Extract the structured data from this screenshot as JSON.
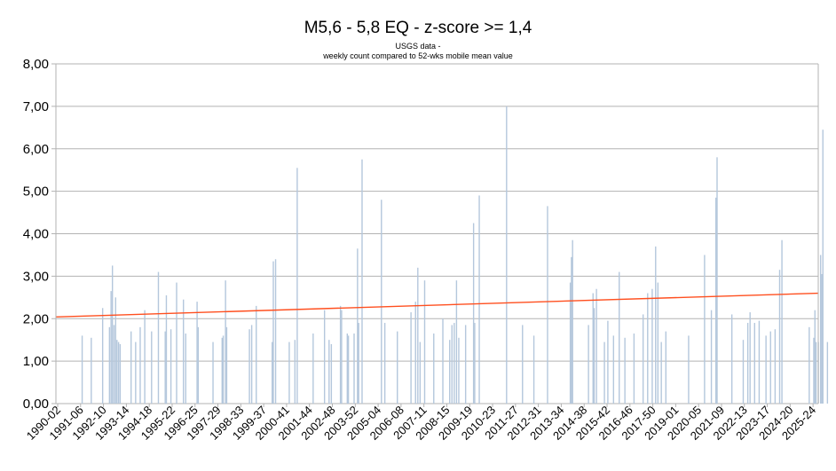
{
  "chart_data": {
    "type": "bar",
    "title": "M5,6 - 5,8 EQ - z-score >= 1,4",
    "subtitle_lines": [
      "USGS data -",
      "weekly count compared to 52-wks mobile mean value"
    ],
    "xlabel": "",
    "ylabel": "",
    "ylim": [
      0,
      8
    ],
    "yticks": [
      "0,00",
      "1,00",
      "2,00",
      "3,00",
      "4,00",
      "5,00",
      "6,00",
      "7,00",
      "8,00"
    ],
    "grid": true,
    "legend": "none",
    "colors": {
      "bars": "#b4c7dc",
      "trend": "#ff4f1f",
      "grid": "#b3b3b3"
    },
    "xticks": [
      "1990-02",
      "1991-06",
      "1992-10",
      "1993-14",
      "1994-18",
      "1995-22",
      "1996-25",
      "1997-29",
      "1998-33",
      "1999-37",
      "2000-41",
      "2001-44",
      "2002-48",
      "2003-52",
      "2005-04",
      "2006-08",
      "2007-11",
      "2008-15",
      "2009-19",
      "2010-23",
      "2011-27",
      "2012-31",
      "2013-34",
      "2014-38",
      "2015-42",
      "2016-46",
      "2017-50",
      "2019-01",
      "2020-05",
      "2021-09",
      "2022-13",
      "2023-17",
      "2024-20",
      "2025-24"
    ],
    "x_range": [
      0,
      33.5
    ],
    "series": [
      {
        "type": "bar",
        "points": [
          [
            1.15,
            1.6
          ],
          [
            1.55,
            1.55
          ],
          [
            2.05,
            2.25
          ],
          [
            2.35,
            1.8
          ],
          [
            2.42,
            2.65
          ],
          [
            2.48,
            3.25
          ],
          [
            2.55,
            1.85
          ],
          [
            2.62,
            2.5
          ],
          [
            2.68,
            1.5
          ],
          [
            2.75,
            1.45
          ],
          [
            2.82,
            1.4
          ],
          [
            3.3,
            1.7
          ],
          [
            3.5,
            1.45
          ],
          [
            3.7,
            1.8
          ],
          [
            3.9,
            2.2
          ],
          [
            4.2,
            1.7
          ],
          [
            4.5,
            3.1
          ],
          [
            4.8,
            1.7
          ],
          [
            4.85,
            2.55
          ],
          [
            5.05,
            1.75
          ],
          [
            5.3,
            2.85
          ],
          [
            5.6,
            2.45
          ],
          [
            5.7,
            1.65
          ],
          [
            6.2,
            2.4
          ],
          [
            6.25,
            1.8
          ],
          [
            6.9,
            1.45
          ],
          [
            7.3,
            1.55
          ],
          [
            7.35,
            1.6
          ],
          [
            7.45,
            2.9
          ],
          [
            7.5,
            1.8
          ],
          [
            8.5,
            1.75
          ],
          [
            8.6,
            1.85
          ],
          [
            8.8,
            2.3
          ],
          [
            9.5,
            1.45
          ],
          [
            9.55,
            3.35
          ],
          [
            9.65,
            3.4
          ],
          [
            10.25,
            1.45
          ],
          [
            10.5,
            1.5
          ],
          [
            10.6,
            5.55
          ],
          [
            11.3,
            1.65
          ],
          [
            11.8,
            2.2
          ],
          [
            12.0,
            1.5
          ],
          [
            12.1,
            1.4
          ],
          [
            12.5,
            2.3
          ],
          [
            12.55,
            2.2
          ],
          [
            12.8,
            1.65
          ],
          [
            12.85,
            1.6
          ],
          [
            13.1,
            1.65
          ],
          [
            13.25,
            3.65
          ],
          [
            13.3,
            1.9
          ],
          [
            13.45,
            5.75
          ],
          [
            14.3,
            4.8
          ],
          [
            14.45,
            1.9
          ],
          [
            15.0,
            1.7
          ],
          [
            15.6,
            2.15
          ],
          [
            15.8,
            2.4
          ],
          [
            15.9,
            3.2
          ],
          [
            16.0,
            1.45
          ],
          [
            16.2,
            2.9
          ],
          [
            16.6,
            1.65
          ],
          [
            17.0,
            2.0
          ],
          [
            17.3,
            1.5
          ],
          [
            17.4,
            1.85
          ],
          [
            17.5,
            1.9
          ],
          [
            17.6,
            2.9
          ],
          [
            17.7,
            1.55
          ],
          [
            18.0,
            1.85
          ],
          [
            18.35,
            4.25
          ],
          [
            18.4,
            1.9
          ],
          [
            18.6,
            4.9
          ],
          [
            19.8,
            7.0
          ],
          [
            20.5,
            1.85
          ],
          [
            21.0,
            1.6
          ],
          [
            21.6,
            4.65
          ],
          [
            22.6,
            2.85
          ],
          [
            22.65,
            3.45
          ],
          [
            22.7,
            3.85
          ],
          [
            23.4,
            1.85
          ],
          [
            23.6,
            2.6
          ],
          [
            23.65,
            2.25
          ],
          [
            23.75,
            2.7
          ],
          [
            24.1,
            1.45
          ],
          [
            24.25,
            1.95
          ],
          [
            24.5,
            1.6
          ],
          [
            24.75,
            3.1
          ],
          [
            25.0,
            1.55
          ],
          [
            25.4,
            1.65
          ],
          [
            25.8,
            2.1
          ],
          [
            26.0,
            2.6
          ],
          [
            26.2,
            2.7
          ],
          [
            26.35,
            3.7
          ],
          [
            26.45,
            2.85
          ],
          [
            26.6,
            1.45
          ],
          [
            26.8,
            1.7
          ],
          [
            27.8,
            1.6
          ],
          [
            28.5,
            3.5
          ],
          [
            28.8,
            2.2
          ],
          [
            29.0,
            4.85
          ],
          [
            29.05,
            5.8
          ],
          [
            29.7,
            2.1
          ],
          [
            30.2,
            1.5
          ],
          [
            30.4,
            1.9
          ],
          [
            30.5,
            2.15
          ],
          [
            30.7,
            1.9
          ],
          [
            30.9,
            1.95
          ],
          [
            31.2,
            1.6
          ],
          [
            31.4,
            1.7
          ],
          [
            31.6,
            1.75
          ],
          [
            31.8,
            3.15
          ],
          [
            31.9,
            3.85
          ],
          [
            33.1,
            1.8
          ],
          [
            33.3,
            1.55
          ],
          [
            33.35,
            2.2
          ],
          [
            33.4,
            1.45
          ],
          [
            33.5,
            1.45
          ],
          [
            33.6,
            3.5
          ],
          [
            33.65,
            3.05
          ],
          [
            33.7,
            6.45
          ],
          [
            33.9,
            1.45
          ]
        ]
      },
      {
        "type": "line",
        "points": [
          [
            0,
            2.04
          ],
          [
            33.5,
            2.6
          ]
        ]
      }
    ]
  }
}
